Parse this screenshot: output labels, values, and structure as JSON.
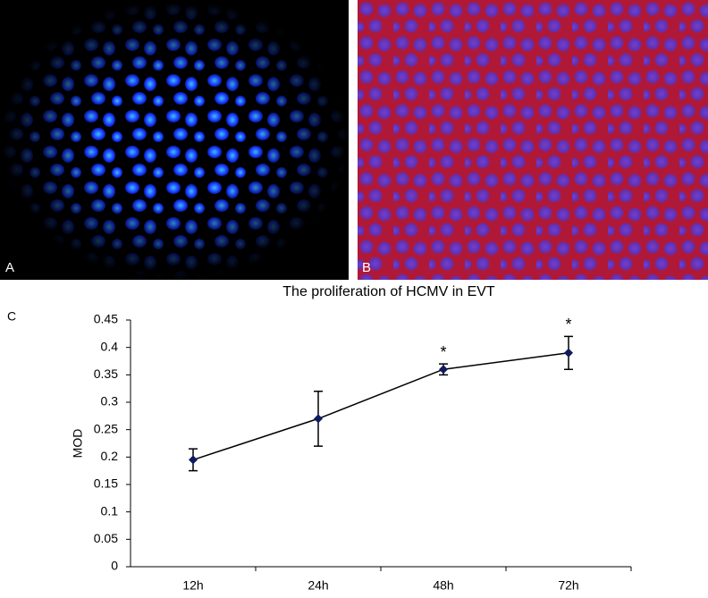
{
  "panels": [
    {
      "label": "A"
    },
    {
      "label": "B"
    }
  ],
  "chart_data": {
    "type": "line",
    "panel_label": "C",
    "title": "The proliferation of HCMV in EVT",
    "y_label": "MOD",
    "categories": [
      "12h",
      "24h",
      "48h",
      "72h"
    ],
    "values": [
      0.195,
      0.27,
      0.36,
      0.39
    ],
    "errors": [
      0.02,
      0.05,
      0.01,
      0.03
    ],
    "significance": [
      null,
      null,
      "*",
      "*"
    ],
    "color": "#0f1b5f",
    "line_color": "#000000",
    "ylim": [
      0,
      0.45
    ],
    "yticks": [
      0,
      0.05,
      0.1,
      0.15,
      0.2,
      0.25,
      0.3,
      0.35,
      0.4,
      0.45
    ],
    "grid": false
  }
}
